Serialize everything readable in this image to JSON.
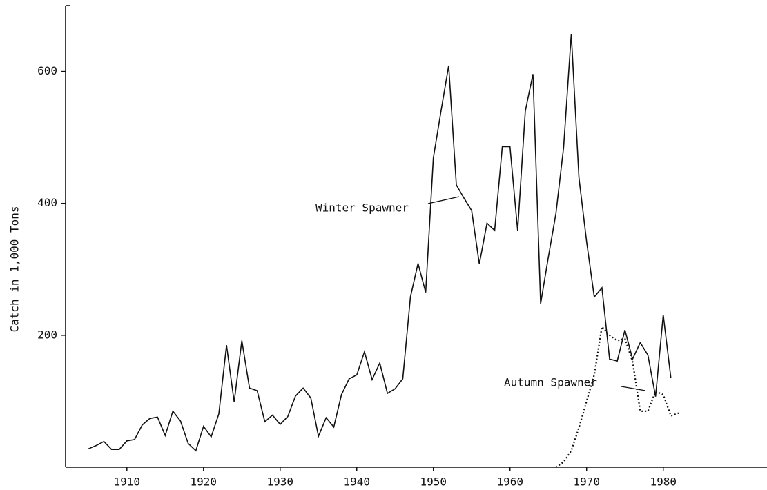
{
  "chart_data": {
    "type": "line",
    "y_label": "Catch in 1,000 Tons",
    "x": [
      1905,
      1906,
      1907,
      1908,
      1909,
      1910,
      1911,
      1912,
      1913,
      1914,
      1915,
      1916,
      1917,
      1918,
      1919,
      1920,
      1921,
      1922,
      1923,
      1924,
      1925,
      1926,
      1927,
      1928,
      1929,
      1930,
      1931,
      1932,
      1933,
      1934,
      1935,
      1936,
      1937,
      1938,
      1939,
      1940,
      1941,
      1942,
      1943,
      1944,
      1945,
      1946,
      1947,
      1948,
      1949,
      1950,
      1951,
      1952,
      1953,
      1954,
      1955,
      1956,
      1957,
      1958,
      1959,
      1960,
      1961,
      1962,
      1963,
      1964,
      1965,
      1966,
      1967,
      1968,
      1969,
      1970,
      1971,
      1972,
      1973,
      1974,
      1975,
      1976,
      1977,
      1978,
      1979,
      1980,
      1981,
      1982
    ],
    "series": [
      {
        "name": "Winter Spawner",
        "color": "#111111",
        "dash": "solid",
        "values": [
          28,
          33,
          39,
          27,
          27,
          40,
          42,
          64,
          74,
          76,
          48,
          85,
          70,
          36,
          25,
          62,
          46,
          81,
          185,
          99,
          192,
          120,
          116,
          69,
          79,
          65,
          77,
          108,
          120,
          105,
          47,
          75,
          61,
          110,
          134,
          140,
          175,
          133,
          158,
          112,
          119,
          134,
          258,
          309,
          265,
          469,
          540,
          609,
          428,
          408,
          389,
          308,
          370,
          359,
          486,
          486,
          359,
          540,
          596,
          248,
          318,
          385,
          485,
          657,
          439,
          342,
          258,
          272,
          164,
          161,
          208,
          164,
          189,
          170,
          107,
          231,
          135,
          null
        ]
      },
      {
        "name": "Autumn Spawner",
        "color": "#111111",
        "dash": "dotted",
        "values": [
          null,
          null,
          null,
          null,
          null,
          null,
          null,
          null,
          null,
          null,
          null,
          null,
          null,
          null,
          null,
          null,
          null,
          null,
          null,
          null,
          null,
          null,
          null,
          null,
          null,
          null,
          null,
          null,
          null,
          null,
          null,
          null,
          null,
          null,
          null,
          null,
          null,
          null,
          null,
          null,
          null,
          null,
          null,
          null,
          null,
          null,
          null,
          null,
          null,
          null,
          null,
          null,
          null,
          null,
          null,
          null,
          null,
          null,
          null,
          null,
          null,
          0,
          8,
          25,
          60,
          100,
          140,
          213,
          200,
          192,
          195,
          160,
          85,
          85,
          115,
          110,
          78,
          82
        ]
      }
    ],
    "xlim": [
      1902,
      1993
    ],
    "xticks": [
      1910,
      1920,
      1930,
      1940,
      1950,
      1960,
      1970,
      1980
    ],
    "ylim": [
      0,
      700
    ],
    "yticks": [
      200,
      400,
      600
    ],
    "grid": false
  }
}
